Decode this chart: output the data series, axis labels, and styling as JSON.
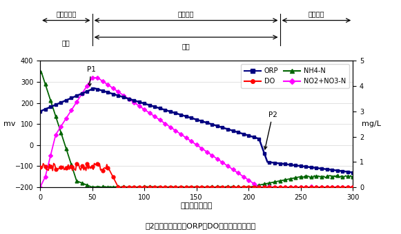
{
  "title": "図2　自動制御時のORP・DO・水質成分の変化",
  "xlabel": "経過時間（分）",
  "ylabel_left": "mv",
  "ylabel_right": "mg/L",
  "ylim_left": [
    -200,
    400
  ],
  "ylim_right": [
    0,
    5
  ],
  "xlim": [
    0,
    300
  ],
  "xticks": [
    0,
    50,
    100,
    150,
    200,
    250,
    300
  ],
  "yticks_left": [
    -200,
    -100,
    0,
    100,
    200,
    300,
    400
  ],
  "yticks_right": [
    0,
    1,
    2,
    3,
    4,
    5
  ],
  "colors": {
    "ORP": "#000080",
    "DO": "#FF0000",
    "NH4N": "#006400",
    "NO2NO3N": "#FF00FF"
  },
  "header": {
    "bakki": "ばっ気工程",
    "kakuhan": "撹拄工程",
    "chinden": "沈殿工程",
    "shokka": "硭化",
    "dasso": "脱窒",
    "bakki_end": 50,
    "kakuhan_end": 230,
    "chinden_end": 300
  },
  "P1_x": 47,
  "P2_x": 215,
  "legend": {
    "ORP": "ORP",
    "DO": "DO",
    "NH4N": "NH4-N",
    "NO2NO3N": "NO2+NO3-N"
  }
}
